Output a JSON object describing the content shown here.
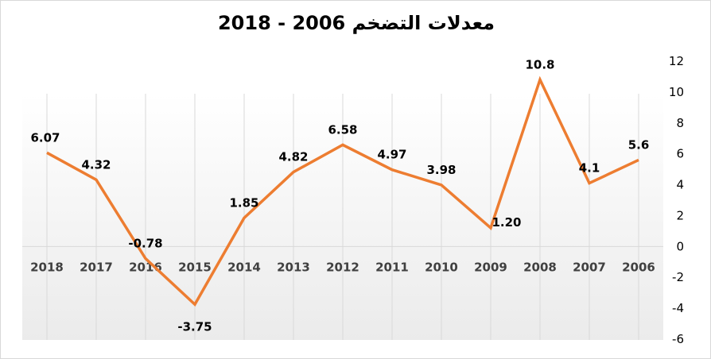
{
  "chart_data": {
    "type": "line",
    "title": "معدلات التضخم 2006 - 2018",
    "categories": [
      "2018",
      "2017",
      "2016",
      "2015",
      "2014",
      "2013",
      "2012",
      "2011",
      "2010",
      "2009",
      "2008",
      "2007",
      "2006"
    ],
    "values": [
      6.07,
      4.32,
      -0.78,
      -3.75,
      1.85,
      4.82,
      6.58,
      4.97,
      3.98,
      1.2,
      10.8,
      4.1,
      5.6
    ],
    "data_labels": [
      "6.07",
      "4.32",
      "-0.78",
      "-3.75",
      "1.85",
      "4.82",
      "6.58",
      "4.97",
      "3.98",
      "1.20",
      "10.8",
      "4.1",
      "5.6"
    ],
    "ylim": [
      -6,
      12
    ],
    "yticks": [
      "-6",
      "-4",
      "-2",
      "0",
      "2",
      "4",
      "6",
      "8",
      "10",
      "12"
    ],
    "y_axis_side": "right",
    "x_direction": "right-to-left",
    "line_color": "#ED7D31",
    "grid": "vertical",
    "xlabel": "",
    "ylabel": ""
  }
}
